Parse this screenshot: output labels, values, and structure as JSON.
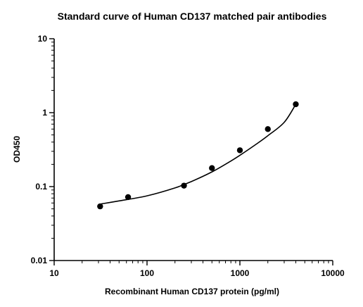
{
  "chart_data": {
    "type": "scatter",
    "title": "Standard curve of Human CD137 matched pair antibodies",
    "xlabel": "Recombinant Human CD137 protein (pg/ml)",
    "ylabel": "OD450",
    "xscale": "log",
    "yscale": "log",
    "xlim": [
      10,
      10000
    ],
    "ylim": [
      0.01,
      10
    ],
    "x_ticks": [
      10,
      100,
      1000,
      10000
    ],
    "x_tick_labels": [
      "10",
      "100",
      "1000",
      "10000"
    ],
    "y_ticks": [
      0.01,
      0.1,
      1,
      10
    ],
    "y_tick_labels": [
      "0.01",
      "0.1",
      "1",
      "10"
    ],
    "grid": false,
    "legend": "none",
    "series": [
      {
        "x": [
          31.25,
          62.5,
          250,
          500,
          1000,
          2000,
          4000
        ],
        "y": [
          0.054,
          0.072,
          0.103,
          0.178,
          0.31,
          0.6,
          1.3
        ]
      }
    ],
    "fit_curve": {
      "x": [
        31.25,
        50,
        100,
        200,
        300,
        500,
        800,
        1000,
        1500,
        2000,
        3000,
        4000
      ],
      "y": [
        0.058,
        0.064,
        0.075,
        0.096,
        0.117,
        0.158,
        0.222,
        0.265,
        0.375,
        0.488,
        0.74,
        1.3
      ]
    },
    "colors": {
      "marker": "#000000",
      "line": "#000000",
      "axis": "#000000"
    }
  }
}
